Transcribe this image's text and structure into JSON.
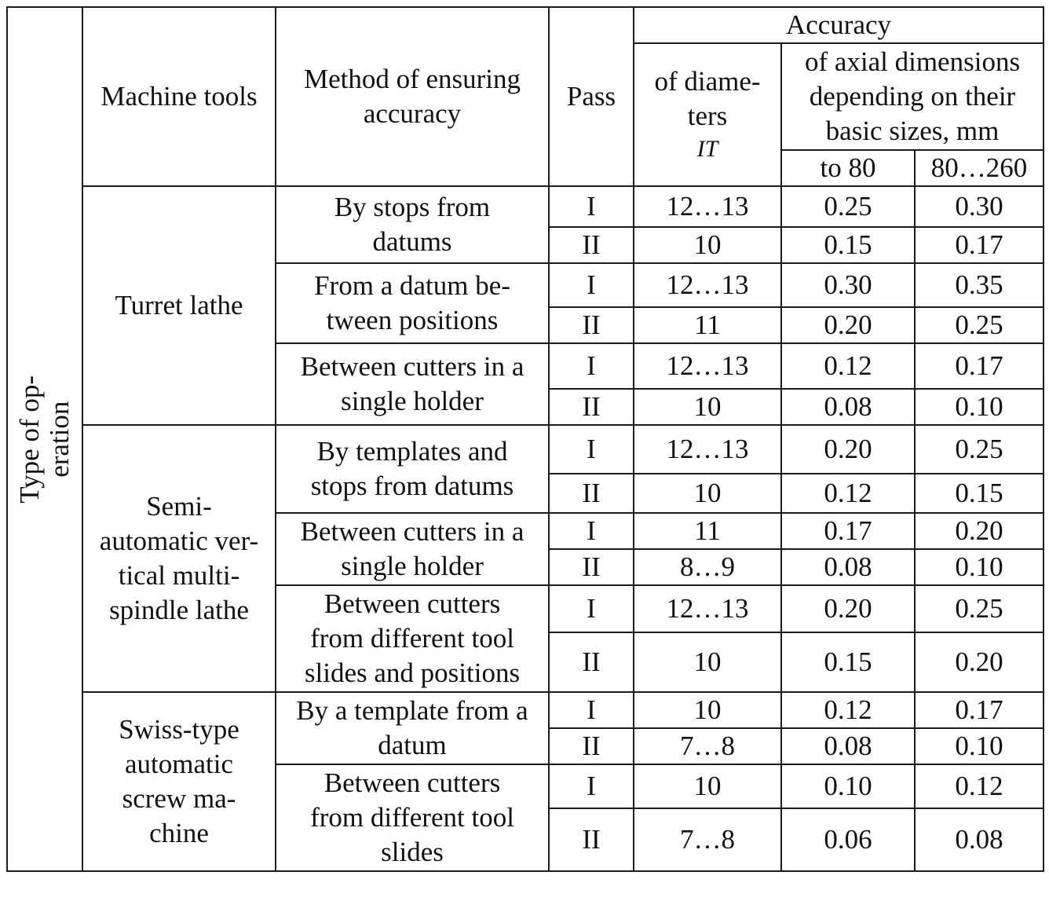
{
  "header": {
    "type_of_operation": "Type of op-\neration",
    "machine_tools": "Machine tools",
    "method": "Method of ensuring\naccuracy",
    "pass": "Pass",
    "accuracy": "Accuracy",
    "of_diameters": "of diame-\nters",
    "it": "IT",
    "axial": "of axial dimensions\ndepending on their\nbasic sizes, mm",
    "to80": "to 80",
    "r80_260": "80…260"
  },
  "groups": [
    {
      "machine": "Turret lathe",
      "methods": [
        {
          "label": "By stops from\ndatums",
          "rows": [
            {
              "pass": "I",
              "it": "12…13",
              "to80": "0.25",
              "r80_260": "0.30"
            },
            {
              "pass": "II",
              "it": "10",
              "to80": "0.15",
              "r80_260": "0.17"
            }
          ]
        },
        {
          "label": "From a datum be-\ntween positions",
          "rows": [
            {
              "pass": "I",
              "it": "12…13",
              "to80": "0.30",
              "r80_260": "0.35"
            },
            {
              "pass": "II",
              "it": "11",
              "to80": "0.20",
              "r80_260": "0.25"
            }
          ]
        },
        {
          "label": "Between cutters in a\nsingle holder",
          "rows": [
            {
              "pass": "I",
              "it": "12…13",
              "to80": "0.12",
              "r80_260": "0.17"
            },
            {
              "pass": "II",
              "it": "10",
              "to80": "0.08",
              "r80_260": "0.10"
            }
          ]
        }
      ]
    },
    {
      "machine": "Semi-\nautomatic ver-\ntical multi-\nspindle lathe",
      "methods": [
        {
          "label": "By templates and\nstops from datums",
          "rows": [
            {
              "pass": "I",
              "it": "12…13",
              "to80": "0.20",
              "r80_260": "0.25"
            },
            {
              "pass": "II",
              "it": "10",
              "to80": "0.12",
              "r80_260": "0.15"
            }
          ]
        },
        {
          "label": "Between cutters in a\nsingle holder",
          "rows": [
            {
              "pass": "I",
              "it": "11",
              "to80": "0.17",
              "r80_260": "0.20"
            },
            {
              "pass": "II",
              "it": "8…9",
              "to80": "0.08",
              "r80_260": "0.10"
            }
          ]
        },
        {
          "label": "Between cutters\nfrom  different tool\nslides and positions",
          "rows": [
            {
              "pass": "I",
              "it": "12…13",
              "to80": "0.20",
              "r80_260": "0.25"
            },
            {
              "pass": "II",
              "it": "10",
              "to80": "0.15",
              "r80_260": "0.20"
            }
          ]
        }
      ]
    },
    {
      "machine": "Swiss-type\nautomatic\nscrew ma-\nchine",
      "methods": [
        {
          "label": "By a template from a\ndatum",
          "rows": [
            {
              "pass": "I",
              "it": "10",
              "to80": "0.12",
              "r80_260": "0.17"
            },
            {
              "pass": "II",
              "it": "7…8",
              "to80": "0.08",
              "r80_260": "0.10"
            }
          ]
        },
        {
          "label": "Between cutters\nfrom  different tool\nslides",
          "rows": [
            {
              "pass": "I",
              "it": "10",
              "to80": "0.10",
              "r80_260": "0.12"
            },
            {
              "pass": "II",
              "it": "7…8",
              "to80": "0.06",
              "r80_260": "0.08"
            }
          ]
        }
      ]
    }
  ]
}
